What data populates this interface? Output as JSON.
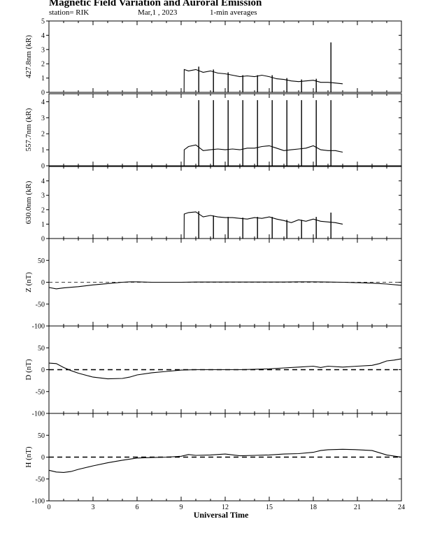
{
  "header": {
    "title": "Magnetic Field Variation and Auroral Emission",
    "station": "station= RIK",
    "date": "Mar,1  , 2023",
    "averaging": "1-min averages"
  },
  "chart_data": {
    "type": "line",
    "xlabel": "Universal Time",
    "xlim": [
      0,
      24
    ],
    "xticks": [
      "0",
      "3",
      "6",
      "9",
      "12",
      "15",
      "18",
      "21",
      "24"
    ],
    "panels": [
      {
        "id": "p4278",
        "ylabel": "427.8nm (kR)",
        "ylim": [
          0,
          5
        ],
        "yticks": [
          "0",
          "1",
          "2",
          "3",
          "4",
          "5"
        ],
        "x": [
          8.0,
          9.2,
          9.21,
          9.5,
          10.0,
          10.5,
          11.0,
          11.5,
          12.0,
          12.5,
          13.0,
          13.5,
          14.0,
          14.5,
          15.0,
          15.5,
          16.0,
          16.5,
          17.0,
          17.5,
          18.0,
          18.5,
          19.0,
          19.5,
          20.0
        ],
        "y": [
          0.0,
          0.0,
          1.6,
          1.5,
          1.6,
          1.4,
          1.5,
          1.35,
          1.3,
          1.2,
          1.1,
          1.15,
          1.1,
          1.2,
          1.1,
          0.95,
          0.9,
          0.8,
          0.75,
          0.8,
          0.85,
          0.7,
          0.7,
          0.65,
          0.6
        ],
        "spikes": [
          {
            "x": 10.2,
            "y": 1.8
          },
          {
            "x": 11.2,
            "y": 1.6
          },
          {
            "x": 12.2,
            "y": 1.4
          },
          {
            "x": 13.2,
            "y": 1.2
          },
          {
            "x": 14.2,
            "y": 1.2
          },
          {
            "x": 15.2,
            "y": 1.2
          },
          {
            "x": 16.2,
            "y": 1.0
          },
          {
            "x": 17.2,
            "y": 0.9
          },
          {
            "x": 18.2,
            "y": 0.95
          },
          {
            "x": 19.2,
            "y": 3.5
          }
        ]
      },
      {
        "id": "p5577",
        "ylabel": "557.7nm (kR)",
        "ylim": [
          0,
          4.5
        ],
        "yticks": [
          "0",
          "1",
          "2",
          "3",
          "4"
        ],
        "x": [
          8.0,
          9.2,
          9.21,
          9.5,
          10.0,
          10.5,
          11.0,
          11.5,
          12.0,
          12.5,
          13.0,
          13.5,
          14.0,
          14.5,
          15.0,
          15.5,
          16.0,
          16.5,
          17.0,
          17.5,
          18.0,
          18.5,
          19.0,
          19.5,
          20.0
        ],
        "y": [
          0.0,
          0.0,
          1.0,
          1.2,
          1.3,
          0.95,
          1.0,
          1.05,
          1.0,
          1.05,
          1.0,
          1.1,
          1.1,
          1.2,
          1.25,
          1.1,
          0.95,
          1.0,
          1.05,
          1.1,
          1.25,
          1.0,
          0.95,
          0.95,
          0.85
        ],
        "spikes": [
          {
            "x": 10.2,
            "y": 4.1
          },
          {
            "x": 11.2,
            "y": 4.1
          },
          {
            "x": 12.2,
            "y": 4.1
          },
          {
            "x": 13.2,
            "y": 4.1
          },
          {
            "x": 14.2,
            "y": 4.1
          },
          {
            "x": 15.2,
            "y": 4.1
          },
          {
            "x": 16.2,
            "y": 4.1
          },
          {
            "x": 17.2,
            "y": 4.1
          },
          {
            "x": 18.2,
            "y": 4.1
          },
          {
            "x": 19.2,
            "y": 4.1
          }
        ]
      },
      {
        "id": "p6300",
        "ylabel": "630.0nm (kR)",
        "ylim": [
          0,
          5
        ],
        "yticks": [
          "0",
          "1",
          "2",
          "3",
          "4"
        ],
        "x": [
          8.0,
          9.2,
          9.21,
          9.5,
          10.0,
          10.5,
          11.0,
          11.5,
          12.0,
          12.5,
          13.0,
          13.5,
          14.0,
          14.5,
          15.0,
          15.5,
          16.0,
          16.5,
          17.0,
          17.5,
          18.0,
          18.5,
          19.0,
          19.5,
          20.0
        ],
        "y": [
          0.0,
          0.0,
          1.7,
          1.8,
          1.85,
          1.5,
          1.6,
          1.5,
          1.45,
          1.45,
          1.4,
          1.35,
          1.45,
          1.4,
          1.5,
          1.35,
          1.25,
          1.1,
          1.3,
          1.2,
          1.35,
          1.2,
          1.15,
          1.1,
          1.0
        ],
        "spikes": [
          {
            "x": 10.2,
            "y": 1.9
          },
          {
            "x": 11.2,
            "y": 1.6
          },
          {
            "x": 12.2,
            "y": 1.5
          },
          {
            "x": 13.2,
            "y": 1.45
          },
          {
            "x": 14.2,
            "y": 1.5
          },
          {
            "x": 15.2,
            "y": 1.5
          },
          {
            "x": 16.2,
            "y": 1.3
          },
          {
            "x": 17.2,
            "y": 1.3
          },
          {
            "x": 18.2,
            "y": 1.5
          },
          {
            "x": 19.2,
            "y": 1.8
          }
        ]
      },
      {
        "id": "pZ",
        "ylabel": "Z (nT)",
        "ylim": [
          -100,
          100
        ],
        "yticks": [
          "-100",
          "-50",
          "0",
          "50"
        ],
        "zero_line": "thin-dashed",
        "x": [
          0,
          0.5,
          1,
          2,
          3,
          4,
          5,
          5.5,
          6,
          7,
          8,
          9,
          10,
          11,
          12,
          13,
          14,
          15,
          16,
          17,
          18,
          19,
          20,
          21,
          22,
          23,
          24
        ],
        "y": [
          -12,
          -15,
          -13,
          -10,
          -6,
          -3,
          0,
          1,
          1,
          0,
          0,
          0,
          0.5,
          0.5,
          0.5,
          0.5,
          0.5,
          0.5,
          0.5,
          1,
          1,
          0.5,
          0,
          -1,
          -2,
          -4,
          -7
        ]
      },
      {
        "id": "pD",
        "ylabel": "D (nT)",
        "ylim": [
          -100,
          100
        ],
        "yticks": [
          "-100",
          "-50",
          "0",
          "50"
        ],
        "zero_line": "thick-dashed",
        "x": [
          0,
          0.5,
          1,
          1.5,
          2,
          3,
          4,
          5,
          5.5,
          6,
          7,
          8,
          9,
          10,
          11,
          12,
          13,
          14,
          15,
          16,
          17,
          18,
          18.5,
          19,
          20,
          21,
          22,
          22.5,
          23,
          23.5,
          24
        ],
        "y": [
          15,
          14,
          5,
          -2,
          -8,
          -17,
          -21,
          -20,
          -17,
          -12,
          -7,
          -4,
          -1,
          0,
          0,
          0,
          0,
          1,
          2,
          4,
          6,
          8,
          5,
          8,
          6,
          8,
          10,
          14,
          20,
          22,
          25
        ]
      },
      {
        "id": "pH",
        "ylabel": "H (nT)",
        "ylim": [
          -100,
          100
        ],
        "yticks": [
          "-100",
          "-50",
          "0",
          "50"
        ],
        "zero_line": "thick-dashed",
        "x": [
          0,
          0.5,
          1,
          1.5,
          2,
          3,
          4,
          5,
          6,
          7,
          8,
          9,
          9.5,
          10,
          11,
          12,
          13,
          14,
          15,
          16,
          17,
          18,
          18.5,
          19,
          20,
          21,
          22,
          23,
          24
        ],
        "y": [
          -30,
          -34,
          -35,
          -33,
          -28,
          -20,
          -13,
          -7,
          -2,
          -1,
          0,
          2,
          6,
          4,
          5,
          7,
          3,
          4,
          5,
          7,
          8,
          11,
          15,
          17,
          18,
          17,
          15,
          5,
          0
        ]
      }
    ]
  }
}
